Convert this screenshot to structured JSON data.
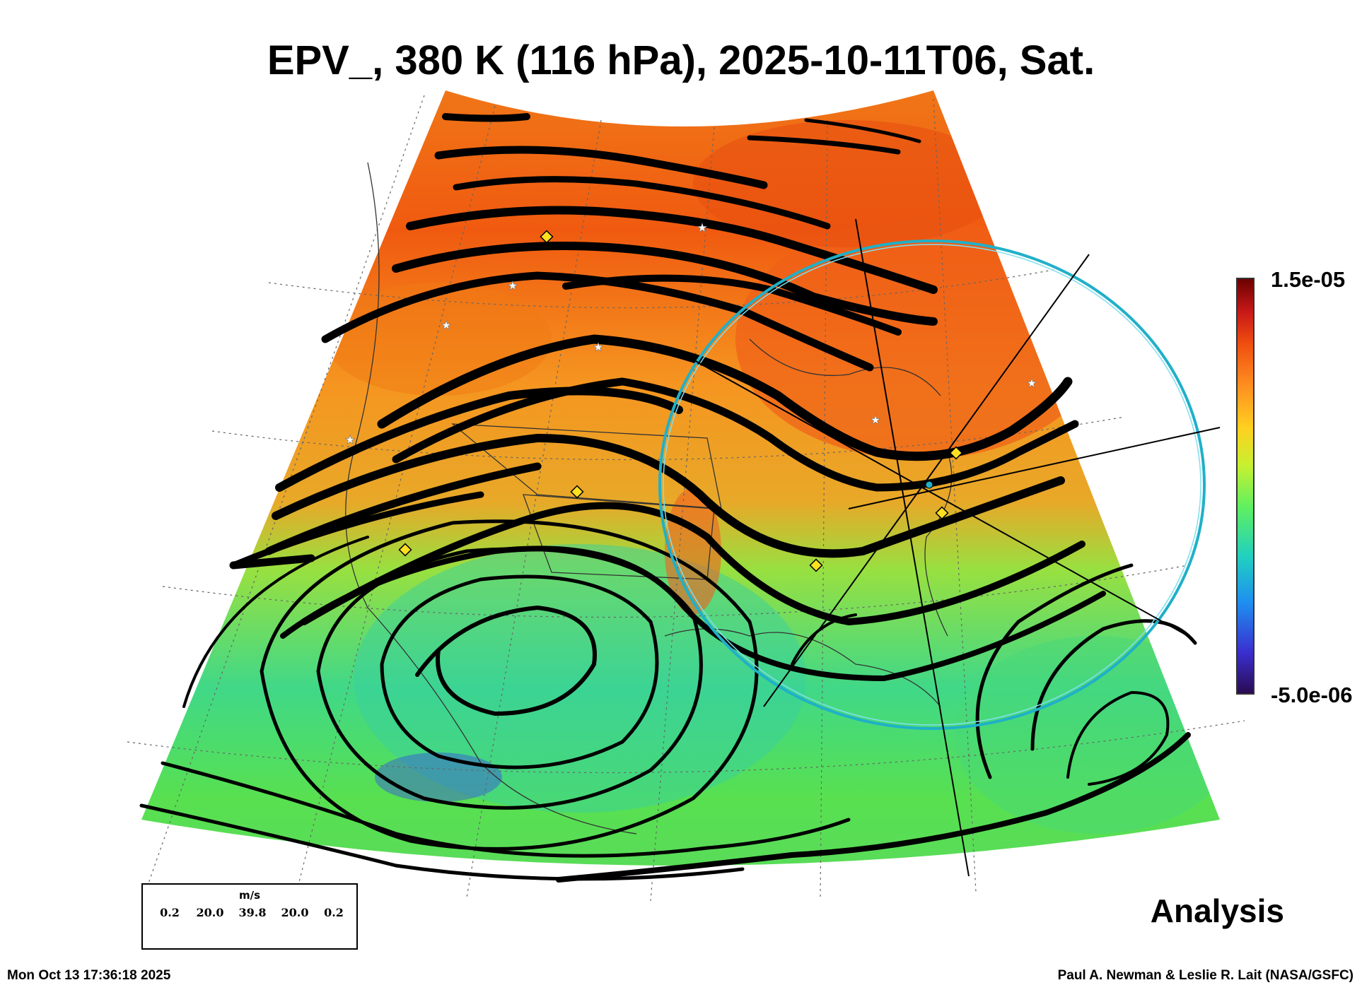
{
  "title": "EPV_, 380 K (116 hPa), 2025-10-11T06, Sat.",
  "colorbar": {
    "max_label": "1.5e-05",
    "min_label": "-5.0e-06",
    "colors": [
      "#2a0a50",
      "#3a2fd0",
      "#1e8ff0",
      "#20d0c0",
      "#60f060",
      "#c8f030",
      "#ffd020",
      "#ff9020",
      "#f05010",
      "#c81818",
      "#6a0000"
    ]
  },
  "legend": {
    "unit": "m/s",
    "values": [
      "0.2",
      "20.0",
      "39.8",
      "20.0",
      "0.2"
    ]
  },
  "analysis_label": "Analysis",
  "footer": {
    "timestamp": "Mon Oct 13 17:36:18 2025",
    "credit": "Paul A. Newman & Leslie R. Lait (NASA/GSFC)"
  },
  "icons": [
    "station-star-icon",
    "station-diamond-icon",
    "wind-arrow-icon",
    "range-ring-icon"
  ]
}
